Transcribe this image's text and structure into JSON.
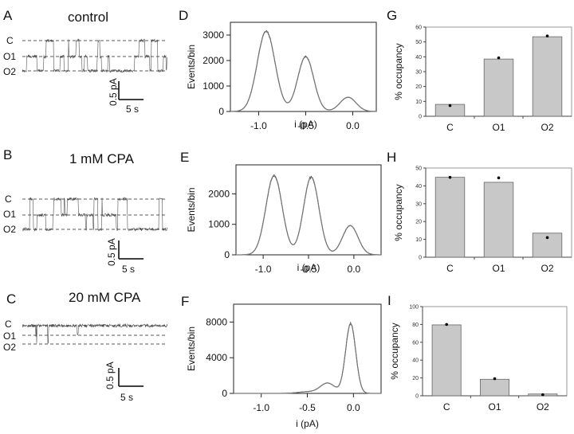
{
  "figure": {
    "panels": {
      "A": {
        "letter": "A",
        "title": "control",
        "states": [
          "C",
          "O1",
          "O2"
        ],
        "scale_y": "0.5 pA",
        "scale_x": "5 s"
      },
      "B": {
        "letter": "B",
        "title": "1 mM CPA",
        "states": [
          "C",
          "O1",
          "O2"
        ],
        "scale_y": "0.5 pA",
        "scale_x": "5 s"
      },
      "C": {
        "letter": "C",
        "title": "20 mM CPA",
        "states": [
          "C",
          "O1",
          "O2"
        ],
        "scale_y": "0.5 pA",
        "scale_x": "5 s"
      }
    }
  },
  "chart_data": [
    {
      "id": "D",
      "type": "line",
      "letter": "D",
      "xlabel": "i (pA)",
      "ylabel": "Events/bin",
      "xlim": [
        -1.3,
        0.25
      ],
      "ylim": [
        0,
        3500
      ],
      "xticks": [
        -1.0,
        -0.5,
        0.0
      ],
      "xtick_labels": [
        "-1.0",
        "-0.5",
        "0.0"
      ],
      "yticks": [
        0,
        1000,
        2000,
        3000
      ],
      "ytick_labels": [
        "0",
        "1000",
        "2000",
        "3000"
      ],
      "components": [
        {
          "mean": -0.92,
          "sd": 0.095,
          "amp": 3150
        },
        {
          "mean": -0.5,
          "sd": 0.085,
          "amp": 2150
        },
        {
          "mean": -0.05,
          "sd": 0.085,
          "amp": 560
        }
      ],
      "peaks": [
        {
          "x": -0.92,
          "y": 3200
        },
        {
          "x": -0.5,
          "y": 2200
        },
        {
          "x": -0.05,
          "y": 580
        }
      ]
    },
    {
      "id": "E",
      "type": "line",
      "letter": "E",
      "xlabel": "i (pA)",
      "ylabel": "Events/bin",
      "xlim": [
        -1.3,
        0.3
      ],
      "ylim": [
        0,
        2950
      ],
      "xticks": [
        -1.0,
        -0.5,
        0.0
      ],
      "xtick_labels": [
        "-1.0",
        "-0.5",
        "0.0"
      ],
      "yticks": [
        0,
        1000,
        2000
      ],
      "ytick_labels": [
        "0",
        "1000",
        "2000"
      ],
      "components": [
        {
          "mean": -0.88,
          "sd": 0.09,
          "amp": 2600
        },
        {
          "mean": -0.47,
          "sd": 0.085,
          "amp": 2550
        },
        {
          "mean": -0.04,
          "sd": 0.085,
          "amp": 960
        }
      ],
      "peaks": [
        {
          "x": -0.88,
          "y": 2650
        },
        {
          "x": -0.47,
          "y": 2620
        },
        {
          "x": -0.04,
          "y": 1000
        }
      ]
    },
    {
      "id": "F",
      "type": "line",
      "letter": "F",
      "xlabel": "i (pA)",
      "ylabel": "Events/bin",
      "xlim": [
        -1.3,
        0.3
      ],
      "ylim": [
        0,
        10000
      ],
      "xticks": [
        -1.0,
        -0.5,
        0.0
      ],
      "xtick_labels": [
        "-1.0",
        "-0.5",
        "0.0"
      ],
      "yticks": [
        0,
        4000,
        8000
      ],
      "ytick_labels": [
        "0",
        "4000",
        "8000"
      ],
      "components": [
        {
          "mean": -0.03,
          "sd": 0.055,
          "amp": 7800
        },
        {
          "mean": -0.28,
          "sd": 0.08,
          "amp": 1150
        },
        {
          "mean": -0.5,
          "sd": 0.1,
          "amp": 180
        }
      ],
      "peaks": [
        {
          "x": -0.03,
          "y": 7900
        },
        {
          "x": -0.28,
          "y": 1250
        }
      ]
    },
    {
      "id": "G",
      "type": "bar",
      "letter": "G",
      "ylabel": "% occupancy",
      "ylim": [
        0,
        60
      ],
      "yticks": [
        0,
        10,
        20,
        30,
        40,
        50,
        60
      ],
      "categories": [
        "C",
        "O1",
        "O2"
      ],
      "values": [
        8,
        38.5,
        53.5
      ],
      "dots": [
        7.2,
        39.3,
        54
      ]
    },
    {
      "id": "H",
      "type": "bar",
      "letter": "H",
      "ylabel": "% occupancy",
      "ylim": [
        0,
        50
      ],
      "yticks": [
        0,
        10,
        20,
        30,
        40,
        50
      ],
      "categories": [
        "C",
        "O1",
        "O2"
      ],
      "values": [
        44.8,
        42,
        13.5
      ],
      "dots": [
        44.8,
        44.5,
        11
      ]
    },
    {
      "id": "I",
      "type": "bar",
      "letter": "I",
      "ylabel": "% occupancy",
      "ylim": [
        0,
        100
      ],
      "yticks": [
        0,
        20,
        40,
        60,
        80,
        100
      ],
      "categories": [
        "C",
        "O1",
        "O2"
      ],
      "values": [
        79.5,
        18.5,
        2
      ],
      "dots": [
        80,
        19.2,
        1.2
      ]
    }
  ]
}
